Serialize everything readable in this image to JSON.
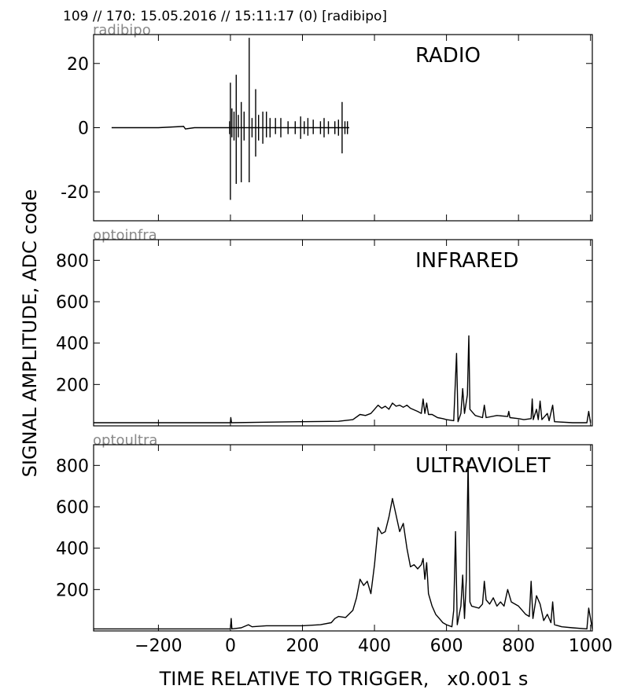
{
  "header": {
    "text": "109 // 170:   15.05.2016 // 15:11:17 (0)  [radibipo]"
  },
  "colors": {
    "line": "#000000",
    "source_label": "#888888",
    "background": "#ffffff"
  },
  "chart_data": {
    "type": "line",
    "xlabel": "TIME RELATIVE TO TRIGGER,   x0.001 s",
    "ylabel": "SIGNAL AMPLITUDE,  ADC code",
    "xlim": [
      -380,
      1005
    ],
    "x_ticks": [
      -200,
      0,
      200,
      400,
      600,
      800,
      1000
    ],
    "x_tick_labels": [
      "−200",
      "0",
      "200",
      "400",
      "600",
      "800",
      "1000"
    ],
    "panels": [
      {
        "title": "RADIO",
        "source": "radibipo",
        "ylim": [
          -29,
          29
        ],
        "y_ticks": [
          -20,
          0,
          20
        ],
        "y_tick_labels": [
          "-20",
          "0",
          "20"
        ],
        "baseline": [
          [
            -330,
            0
          ],
          [
            -200,
            0
          ],
          [
            -130,
            0.4
          ],
          [
            -125,
            -0.4
          ],
          [
            -100,
            0
          ],
          [
            -10,
            0
          ],
          [
            330,
            0
          ]
        ],
        "spikes": [
          [
            -2,
            -2,
            2
          ],
          [
            0,
            -22.5,
            14
          ],
          [
            4,
            -3,
            6
          ],
          [
            10,
            -4,
            5
          ],
          [
            16,
            -17.5,
            16.5
          ],
          [
            22,
            -3,
            4
          ],
          [
            30,
            -17,
            8
          ],
          [
            38,
            -4,
            5
          ],
          [
            52,
            -17,
            28
          ],
          [
            60,
            -3,
            3
          ],
          [
            70,
            -9,
            12
          ],
          [
            78,
            -4,
            4
          ],
          [
            90,
            -5,
            5
          ],
          [
            100,
            -3,
            5
          ],
          [
            110,
            -3,
            3
          ],
          [
            125,
            -2,
            3
          ],
          [
            140,
            -3,
            3
          ],
          [
            160,
            -2,
            2
          ],
          [
            180,
            -2,
            2
          ],
          [
            195,
            -3.5,
            3.5
          ],
          [
            205,
            -2,
            2
          ],
          [
            215,
            -2.5,
            3
          ],
          [
            230,
            -2,
            2.5
          ],
          [
            250,
            -2,
            2
          ],
          [
            260,
            -3,
            3
          ],
          [
            272,
            -2,
            2
          ],
          [
            290,
            -2,
            2
          ],
          [
            300,
            -2.5,
            2.5
          ],
          [
            310,
            -8,
            8
          ],
          [
            318,
            -2,
            2
          ],
          [
            325,
            -2,
            2
          ]
        ]
      },
      {
        "title": "INFRARED",
        "source": "optoinfra",
        "ylim": [
          0,
          900
        ],
        "y_ticks": [
          200,
          400,
          600,
          800
        ],
        "y_tick_labels": [
          "200",
          "400",
          "600",
          "800"
        ],
        "points": [
          [
            -380,
            15
          ],
          [
            -200,
            15
          ],
          [
            0,
            15
          ],
          [
            1,
            40
          ],
          [
            3,
            15
          ],
          [
            100,
            18
          ],
          [
            200,
            20
          ],
          [
            300,
            22
          ],
          [
            340,
            30
          ],
          [
            360,
            55
          ],
          [
            375,
            50
          ],
          [
            390,
            60
          ],
          [
            400,
            80
          ],
          [
            410,
            100
          ],
          [
            420,
            85
          ],
          [
            430,
            95
          ],
          [
            440,
            80
          ],
          [
            450,
            110
          ],
          [
            460,
            95
          ],
          [
            470,
            100
          ],
          [
            480,
            90
          ],
          [
            490,
            100
          ],
          [
            500,
            85
          ],
          [
            520,
            70
          ],
          [
            530,
            60
          ],
          [
            535,
            130
          ],
          [
            540,
            60
          ],
          [
            545,
            110
          ],
          [
            550,
            55
          ],
          [
            560,
            55
          ],
          [
            575,
            40
          ],
          [
            590,
            35
          ],
          [
            600,
            30
          ],
          [
            620,
            25
          ],
          [
            628,
            350
          ],
          [
            632,
            20
          ],
          [
            640,
            60
          ],
          [
            645,
            180
          ],
          [
            650,
            60
          ],
          [
            658,
            150
          ],
          [
            662,
            435
          ],
          [
            665,
            80
          ],
          [
            680,
            50
          ],
          [
            700,
            40
          ],
          [
            705,
            100
          ],
          [
            710,
            40
          ],
          [
            740,
            50
          ],
          [
            770,
            45
          ],
          [
            773,
            70
          ],
          [
            776,
            40
          ],
          [
            800,
            35
          ],
          [
            815,
            30
          ],
          [
            835,
            35
          ],
          [
            838,
            130
          ],
          [
            841,
            30
          ],
          [
            850,
            80
          ],
          [
            855,
            30
          ],
          [
            860,
            120
          ],
          [
            865,
            30
          ],
          [
            880,
            60
          ],
          [
            885,
            25
          ],
          [
            895,
            100
          ],
          [
            900,
            20
          ],
          [
            950,
            15
          ],
          [
            990,
            15
          ],
          [
            995,
            70
          ],
          [
            1000,
            15
          ]
        ]
      },
      {
        "title": "ULTRAVIOLET",
        "source": "optoultra",
        "ylim": [
          0,
          900
        ],
        "y_ticks": [
          200,
          400,
          600,
          800
        ],
        "y_tick_labels": [
          "200",
          "400",
          "600",
          "800"
        ],
        "points": [
          [
            -380,
            10
          ],
          [
            -200,
            10
          ],
          [
            0,
            10
          ],
          [
            2,
            60
          ],
          [
            4,
            10
          ],
          [
            30,
            15
          ],
          [
            50,
            30
          ],
          [
            60,
            20
          ],
          [
            100,
            25
          ],
          [
            200,
            25
          ],
          [
            250,
            30
          ],
          [
            280,
            40
          ],
          [
            290,
            60
          ],
          [
            300,
            70
          ],
          [
            320,
            65
          ],
          [
            340,
            100
          ],
          [
            350,
            160
          ],
          [
            360,
            250
          ],
          [
            370,
            220
          ],
          [
            380,
            240
          ],
          [
            390,
            180
          ],
          [
            400,
            320
          ],
          [
            410,
            500
          ],
          [
            420,
            470
          ],
          [
            430,
            480
          ],
          [
            440,
            550
          ],
          [
            450,
            640
          ],
          [
            460,
            560
          ],
          [
            465,
            520
          ],
          [
            470,
            480
          ],
          [
            480,
            520
          ],
          [
            490,
            400
          ],
          [
            500,
            310
          ],
          [
            510,
            320
          ],
          [
            520,
            300
          ],
          [
            530,
            320
          ],
          [
            535,
            350
          ],
          [
            540,
            250
          ],
          [
            545,
            330
          ],
          [
            550,
            180
          ],
          [
            560,
            120
          ],
          [
            570,
            80
          ],
          [
            580,
            60
          ],
          [
            590,
            40
          ],
          [
            600,
            30
          ],
          [
            615,
            20
          ],
          [
            620,
            100
          ],
          [
            625,
            480
          ],
          [
            630,
            30
          ],
          [
            640,
            120
          ],
          [
            645,
            270
          ],
          [
            650,
            60
          ],
          [
            655,
            250
          ],
          [
            660,
            820
          ],
          [
            665,
            140
          ],
          [
            670,
            120
          ],
          [
            690,
            110
          ],
          [
            700,
            130
          ],
          [
            705,
            240
          ],
          [
            710,
            150
          ],
          [
            720,
            130
          ],
          [
            730,
            160
          ],
          [
            740,
            120
          ],
          [
            750,
            140
          ],
          [
            760,
            120
          ],
          [
            770,
            200
          ],
          [
            780,
            140
          ],
          [
            800,
            120
          ],
          [
            820,
            80
          ],
          [
            830,
            70
          ],
          [
            835,
            240
          ],
          [
            840,
            60
          ],
          [
            850,
            170
          ],
          [
            860,
            130
          ],
          [
            870,
            50
          ],
          [
            880,
            80
          ],
          [
            890,
            40
          ],
          [
            895,
            140
          ],
          [
            900,
            30
          ],
          [
            920,
            20
          ],
          [
            950,
            15
          ],
          [
            990,
            10
          ],
          [
            995,
            110
          ],
          [
            1005,
            10
          ]
        ]
      }
    ]
  }
}
